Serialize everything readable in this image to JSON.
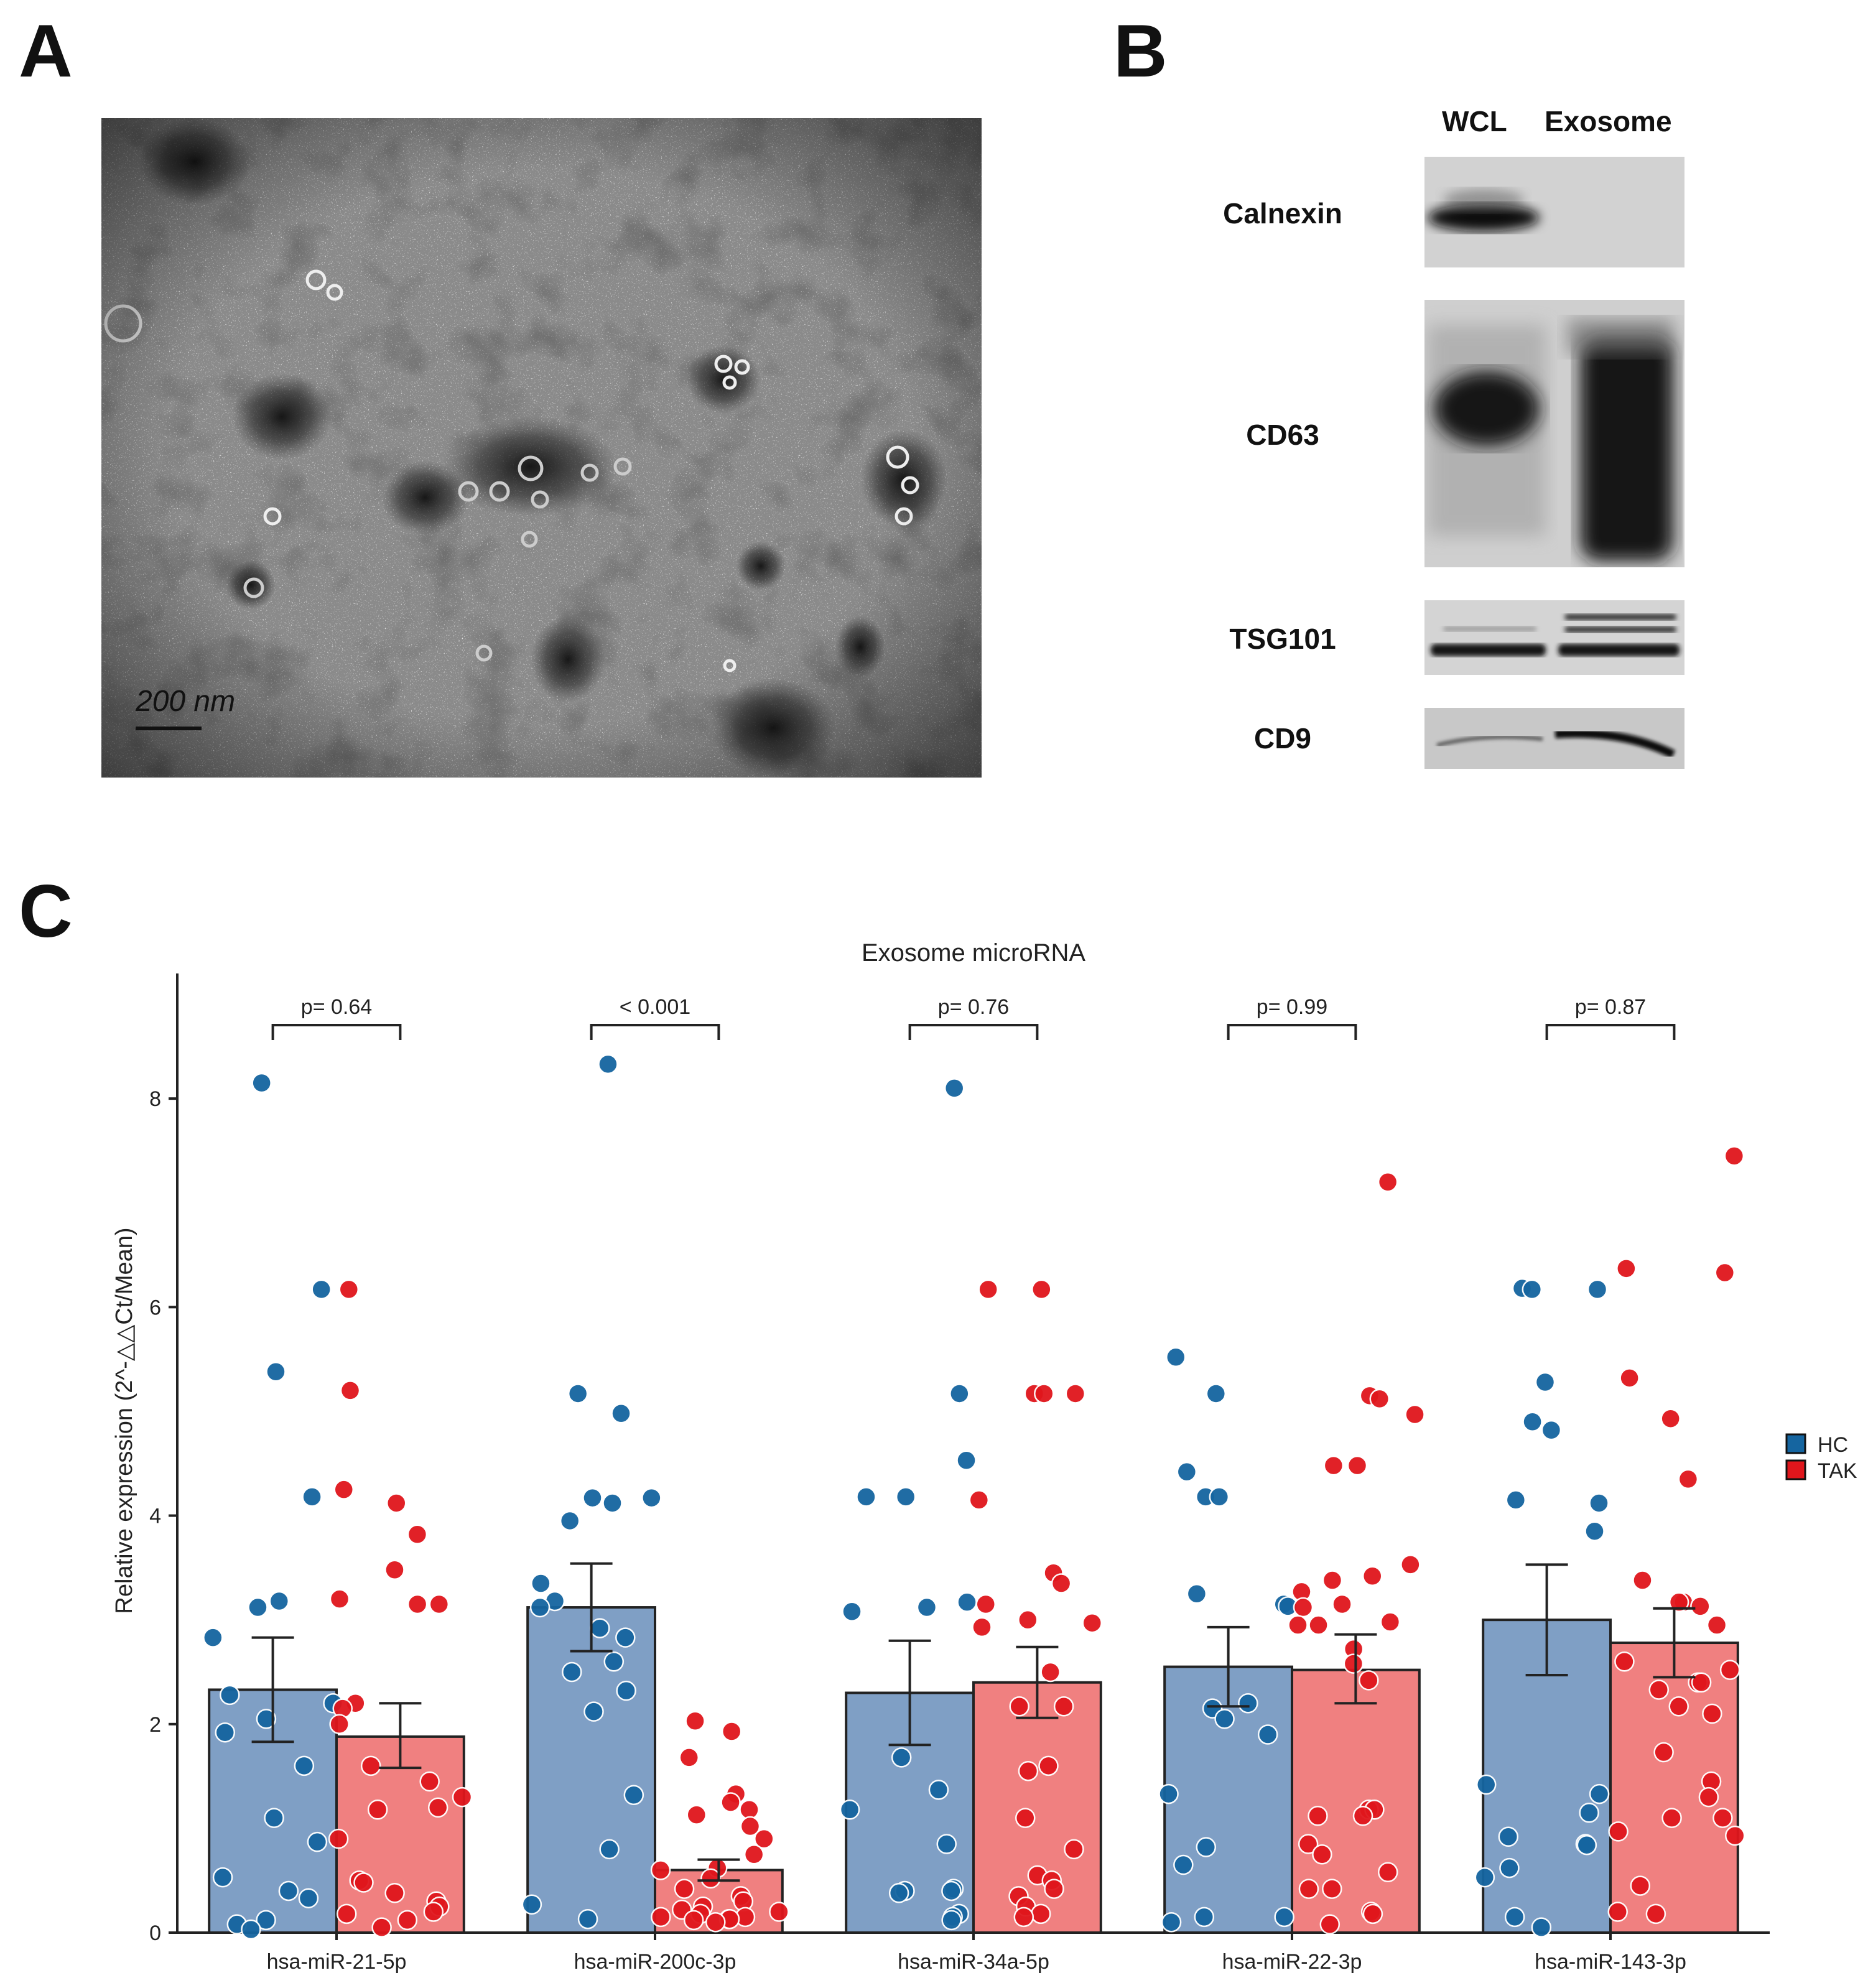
{
  "panels": {
    "a": "A",
    "b": "B",
    "c": "C"
  },
  "tem": {
    "scale_label": "200 nm"
  },
  "blot": {
    "lanes": [
      "WCL",
      "Exosome"
    ],
    "rows": [
      "Calnexin",
      "CD63",
      "TSG101",
      "CD9"
    ]
  },
  "chart_data": {
    "type": "bar",
    "title": "Exosome microRNA",
    "ylabel": "Relative expression (2^-△△Ct/Mean)",
    "xlabel": "",
    "ylim": [
      0,
      9.2
    ],
    "yticks": [
      0,
      2,
      4,
      6,
      8
    ],
    "categories": [
      "hsa-miR-21-5p",
      "hsa-miR-200c-3p",
      "hsa-miR-34a-5p",
      "hsa-miR-22-3p",
      "hsa-miR-143-3p"
    ],
    "pvalues": [
      "p= 0.64",
      "< 0.001",
      "p= 0.76",
      "p= 0.99",
      "p= 0.87"
    ],
    "legend": {
      "position": "right",
      "entries": [
        "HC",
        "TAK"
      ]
    },
    "series": [
      {
        "name": "HC",
        "color": "#7f9fc5",
        "dot_color": "#1565a0",
        "values": [
          2.33,
          3.12,
          2.3,
          2.55,
          3.0
        ],
        "errors": [
          [
            1.83,
            2.83
          ],
          [
            2.7,
            3.54
          ],
          [
            1.8,
            2.8
          ],
          [
            2.17,
            2.93
          ],
          [
            2.47,
            3.53
          ]
        ],
        "points": [
          [
            8.15,
            6.17,
            5.38,
            4.18,
            3.18,
            3.12,
            2.83,
            2.28,
            2.2,
            2.05,
            1.92,
            1.6,
            1.1,
            0.87,
            0.53,
            0.4,
            0.33,
            0.12,
            0.08,
            0.03
          ],
          [
            8.33,
            5.17,
            4.98,
            4.17,
            4.17,
            4.12,
            3.95,
            3.35,
            3.18,
            3.12,
            2.92,
            2.83,
            2.6,
            2.5,
            2.32,
            2.12,
            1.32,
            0.8,
            0.27,
            0.13
          ],
          [
            8.1,
            5.17,
            4.53,
            4.18,
            4.18,
            3.17,
            3.12,
            3.08,
            1.68,
            1.37,
            1.18,
            0.85,
            0.42,
            0.4,
            0.4,
            0.38,
            0.18,
            0.15,
            0.12
          ],
          [
            5.52,
            5.17,
            4.42,
            4.18,
            4.18,
            3.25,
            3.15,
            3.13,
            2.2,
            2.15,
            2.05,
            1.9,
            1.33,
            0.82,
            0.65,
            0.15,
            0.15,
            0.1
          ],
          [
            6.18,
            6.17,
            6.17,
            5.28,
            4.9,
            4.82,
            4.15,
            4.12,
            3.85,
            1.42,
            1.33,
            1.15,
            0.92,
            0.85,
            0.84,
            0.62,
            0.53,
            0.15,
            0.05
          ]
        ]
      },
      {
        "name": "TAK",
        "color": "#f08080",
        "dot_color": "#e0161c",
        "values": [
          1.88,
          0.6,
          2.4,
          2.52,
          2.78
        ],
        "errors": [
          [
            1.58,
            2.2
          ],
          [
            0.5,
            0.7
          ],
          [
            2.06,
            2.74
          ],
          [
            2.2,
            2.86
          ],
          [
            2.45,
            3.11
          ]
        ],
        "points": [
          [
            6.17,
            5.2,
            4.25,
            4.12,
            3.82,
            3.48,
            3.2,
            3.15,
            3.15,
            2.2,
            2.15,
            2.0,
            1.6,
            1.45,
            1.3,
            1.2,
            1.18,
            0.9,
            0.5,
            0.48,
            0.38,
            0.3,
            0.25,
            0.2,
            0.18,
            0.12,
            0.05
          ],
          [
            2.03,
            1.93,
            1.68,
            1.33,
            1.25,
            1.18,
            1.13,
            1.02,
            0.9,
            0.75,
            0.62,
            0.6,
            0.52,
            0.42,
            0.35,
            0.3,
            0.25,
            0.22,
            0.2,
            0.18,
            0.15,
            0.15,
            0.13,
            0.13,
            0.12,
            0.1
          ],
          [
            6.17,
            6.17,
            5.17,
            5.17,
            5.17,
            4.15,
            3.45,
            3.35,
            3.15,
            3.0,
            2.97,
            2.93,
            2.5,
            2.17,
            2.17,
            1.6,
            1.55,
            1.1,
            0.8,
            0.55,
            0.5,
            0.42,
            0.35,
            0.25,
            0.18,
            0.15
          ],
          [
            7.2,
            5.15,
            5.12,
            4.97,
            4.48,
            4.48,
            3.53,
            3.42,
            3.38,
            3.27,
            3.15,
            3.12,
            2.98,
            2.95,
            2.95,
            2.72,
            2.58,
            2.42,
            1.18,
            1.18,
            1.12,
            1.12,
            0.85,
            0.75,
            0.58,
            0.42,
            0.42,
            0.2,
            0.18,
            0.08
          ],
          [
            7.45,
            6.37,
            6.33,
            5.32,
            4.93,
            4.35,
            3.38,
            3.17,
            3.17,
            3.13,
            2.95,
            2.6,
            2.52,
            2.4,
            2.4,
            2.33,
            2.17,
            2.1,
            1.73,
            1.45,
            1.3,
            1.1,
            1.1,
            0.97,
            0.93,
            0.45,
            0.2,
            0.18
          ]
        ]
      }
    ]
  }
}
